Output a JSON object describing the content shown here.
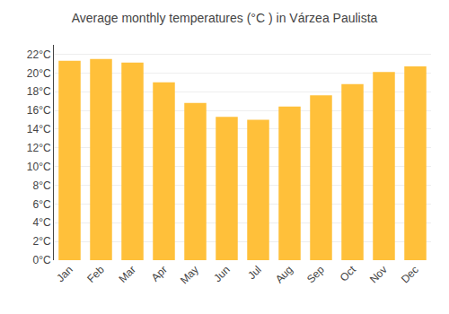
{
  "chart_data": {
    "type": "bar",
    "title": "Average monthly temperatures (°C ) in Várzea Paulista",
    "categories": [
      "Jan",
      "Feb",
      "Mar",
      "Apr",
      "May",
      "Jun",
      "Jul",
      "Aug",
      "Sep",
      "Oct",
      "Nov",
      "Dec"
    ],
    "values": [
      21.3,
      21.5,
      21.1,
      19.0,
      16.8,
      15.3,
      15.0,
      16.4,
      17.6,
      18.8,
      20.1,
      20.7
    ],
    "color": "#FFC03A",
    "ylim": [
      0,
      23
    ],
    "yticks": [
      {
        "value": 0,
        "label": "0°C"
      },
      {
        "value": 2,
        "label": "2°C"
      },
      {
        "value": 4,
        "label": "4°C"
      },
      {
        "value": 6,
        "label": "6°C"
      },
      {
        "value": 8,
        "label": "8°C"
      },
      {
        "value": 10,
        "label": "10°C"
      },
      {
        "value": 12,
        "label": "12°C"
      },
      {
        "value": 14,
        "label": "14°C"
      },
      {
        "value": 16,
        "label": "16°C"
      },
      {
        "value": 18,
        "label": "18°C"
      },
      {
        "value": 20,
        "label": "20°C"
      },
      {
        "value": 22,
        "label": "22°C"
      }
    ],
    "grid": true
  }
}
